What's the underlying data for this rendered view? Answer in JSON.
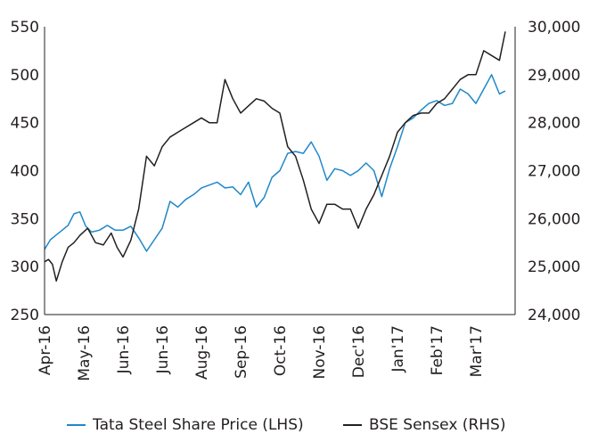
{
  "chart_data": {
    "type": "line",
    "title": "",
    "xlabel": "",
    "ylabel_left": "",
    "ylabel_right": "",
    "grid": false,
    "legend_position": "bottom",
    "x_ticks": [
      "Apr-16",
      "May-16",
      "Jun-16",
      "Jun-16",
      "Aug-16",
      "Sep-16",
      "Oct-16",
      "Nov-16",
      "Dec'16",
      "Jan'17",
      "Feb'17",
      "Mar'17"
    ],
    "y_left": {
      "ticks": [
        "250",
        "300",
        "350",
        "400",
        "450",
        "500",
        "550"
      ],
      "min": 250,
      "max": 550
    },
    "y_right": {
      "ticks": [
        "24,000",
        "25,000",
        "26,000",
        "27,000",
        "28,000",
        "29,000",
        "30,000"
      ],
      "min": 24000,
      "max": 30000
    },
    "colors": {
      "tata": "#1f88c9",
      "sensex": "#231f20",
      "axis": "#231f20"
    },
    "series": [
      {
        "name": "Tata Steel Share Price (LHS)",
        "axis": "left",
        "x": [
          0,
          0.15,
          0.3,
          0.45,
          0.6,
          0.75,
          0.9,
          1.05,
          1.2,
          1.4,
          1.6,
          1.8,
          2.0,
          2.2,
          2.4,
          2.6,
          2.8,
          3.0,
          3.2,
          3.4,
          3.6,
          3.8,
          4.0,
          4.2,
          4.4,
          4.6,
          4.8,
          5.0,
          5.2,
          5.4,
          5.6,
          5.8,
          6.0,
          6.2,
          6.4,
          6.6,
          6.8,
          7.0,
          7.2,
          7.4,
          7.6,
          7.8,
          8.0,
          8.2,
          8.4,
          8.6,
          8.8,
          9.0,
          9.2,
          9.4,
          9.6,
          9.8,
          10.0,
          10.2,
          10.4,
          10.6,
          10.8,
          11.0,
          11.2,
          11.4,
          11.6,
          11.75
        ],
        "y": [
          318,
          328,
          333,
          338,
          343,
          355,
          357,
          342,
          336,
          338,
          343,
          338,
          338,
          342,
          330,
          316,
          328,
          340,
          368,
          362,
          370,
          375,
          382,
          385,
          388,
          382,
          383,
          375,
          388,
          362,
          372,
          393,
          400,
          418,
          420,
          418,
          430,
          415,
          390,
          402,
          400,
          395,
          400,
          408,
          400,
          373,
          402,
          425,
          450,
          455,
          463,
          470,
          473,
          468,
          470,
          485,
          480,
          470,
          485,
          500,
          480,
          483
        ]
      },
      {
        "name": "BSE Sensex (RHS)",
        "axis": "right",
        "x": [
          0,
          0.1,
          0.2,
          0.3,
          0.45,
          0.6,
          0.75,
          0.9,
          1.1,
          1.3,
          1.5,
          1.7,
          1.85,
          2.0,
          2.2,
          2.4,
          2.6,
          2.8,
          3.0,
          3.2,
          3.4,
          3.6,
          3.8,
          4.0,
          4.2,
          4.4,
          4.6,
          4.8,
          5.0,
          5.2,
          5.4,
          5.6,
          5.8,
          6.0,
          6.2,
          6.4,
          6.6,
          6.8,
          7.0,
          7.2,
          7.4,
          7.6,
          7.8,
          8.0,
          8.2,
          8.4,
          8.6,
          8.8,
          9.0,
          9.2,
          9.4,
          9.6,
          9.8,
          10.0,
          10.2,
          10.4,
          10.6,
          10.8,
          11.0,
          11.2,
          11.4,
          11.6,
          11.75
        ],
        "y": [
          25100,
          25150,
          25050,
          24700,
          25100,
          25400,
          25500,
          25650,
          25800,
          25500,
          25450,
          25700,
          25400,
          25200,
          25550,
          26200,
          27300,
          27100,
          27500,
          27700,
          27800,
          27900,
          28000,
          28100,
          28000,
          28000,
          28900,
          28500,
          28200,
          28350,
          28500,
          28450,
          28300,
          28200,
          27500,
          27300,
          26800,
          26200,
          25900,
          26300,
          26300,
          26200,
          26200,
          25800,
          26200,
          26500,
          26900,
          27300,
          27800,
          28000,
          28150,
          28200,
          28200,
          28400,
          28500,
          28700,
          28900,
          29000,
          29000,
          29500,
          29400,
          29300,
          29900
        ]
      }
    ]
  }
}
